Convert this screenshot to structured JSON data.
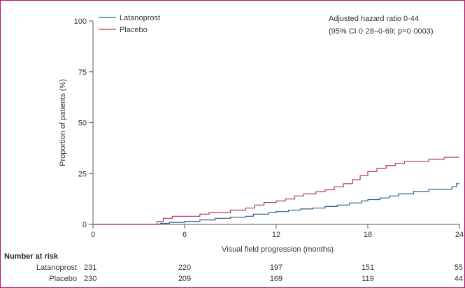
{
  "chart_data": {
    "type": "line",
    "step": true,
    "xlabel": "Visual field progression (months)",
    "ylabel": "Proportion of patients (%)",
    "xlim": [
      0,
      24
    ],
    "ylim": [
      0,
      100
    ],
    "x_ticks": [
      0,
      6,
      12,
      18,
      24
    ],
    "y_ticks": [
      0,
      25,
      50,
      75,
      100
    ],
    "grid": false,
    "legend_position": "top-left",
    "series": [
      {
        "name": "Latanoprost",
        "color": "#2e5f86",
        "points": [
          [
            0,
            0
          ],
          [
            4.4,
            0
          ],
          [
            4.4,
            0.5
          ],
          [
            5.0,
            0.5
          ],
          [
            5.0,
            1.0
          ],
          [
            6.0,
            1.0
          ],
          [
            6.0,
            1.5
          ],
          [
            7.0,
            1.5
          ],
          [
            7.0,
            2.2
          ],
          [
            8.0,
            2.2
          ],
          [
            8.0,
            3.0
          ],
          [
            9.0,
            3.0
          ],
          [
            9.0,
            3.5
          ],
          [
            10.0,
            3.5
          ],
          [
            10.0,
            4.0
          ],
          [
            10.5,
            4.0
          ],
          [
            10.5,
            5.0
          ],
          [
            11.5,
            5.0
          ],
          [
            11.5,
            5.8
          ],
          [
            12.0,
            5.8
          ],
          [
            12.0,
            6.3
          ],
          [
            12.8,
            6.3
          ],
          [
            12.8,
            7.0
          ],
          [
            13.6,
            7.0
          ],
          [
            13.6,
            7.6
          ],
          [
            14.4,
            7.6
          ],
          [
            14.4,
            8.0
          ],
          [
            15.2,
            8.0
          ],
          [
            15.2,
            8.8
          ],
          [
            16.0,
            8.8
          ],
          [
            16.0,
            9.5
          ],
          [
            16.8,
            9.5
          ],
          [
            16.8,
            10.5
          ],
          [
            17.6,
            10.5
          ],
          [
            17.6,
            11.5
          ],
          [
            18.0,
            11.5
          ],
          [
            18.0,
            12.2
          ],
          [
            18.8,
            12.2
          ],
          [
            18.8,
            13.0
          ],
          [
            19.4,
            13.0
          ],
          [
            19.4,
            14.0
          ],
          [
            20.0,
            14.0
          ],
          [
            20.0,
            15.0
          ],
          [
            21.0,
            15.0
          ],
          [
            21.0,
            16.2
          ],
          [
            22.0,
            16.2
          ],
          [
            22.0,
            17.2
          ],
          [
            23.5,
            17.2
          ],
          [
            23.5,
            18.5
          ],
          [
            23.8,
            18.5
          ],
          [
            23.8,
            20.0
          ],
          [
            24.0,
            20.0
          ]
        ]
      },
      {
        "name": "Placebo",
        "color": "#b0385a",
        "points": [
          [
            0,
            0
          ],
          [
            4.2,
            0
          ],
          [
            4.2,
            1.5
          ],
          [
            4.6,
            1.5
          ],
          [
            4.6,
            3.0
          ],
          [
            5.2,
            3.0
          ],
          [
            5.2,
            4.0
          ],
          [
            7.0,
            4.0
          ],
          [
            7.0,
            5.0
          ],
          [
            7.6,
            5.0
          ],
          [
            7.6,
            5.8
          ],
          [
            9.0,
            5.8
          ],
          [
            9.0,
            7.0
          ],
          [
            10.0,
            7.0
          ],
          [
            10.0,
            8.0
          ],
          [
            10.6,
            8.0
          ],
          [
            10.6,
            9.5
          ],
          [
            11.2,
            9.5
          ],
          [
            11.2,
            10.8
          ],
          [
            12.0,
            10.8
          ],
          [
            12.0,
            11.5
          ],
          [
            12.6,
            11.5
          ],
          [
            12.6,
            12.5
          ],
          [
            13.2,
            12.5
          ],
          [
            13.2,
            14.0
          ],
          [
            13.8,
            14.0
          ],
          [
            13.8,
            15.0
          ],
          [
            14.6,
            15.0
          ],
          [
            14.6,
            16.0
          ],
          [
            15.2,
            16.0
          ],
          [
            15.2,
            17.0
          ],
          [
            15.8,
            17.0
          ],
          [
            15.8,
            18.5
          ],
          [
            16.4,
            18.5
          ],
          [
            16.4,
            20.0
          ],
          [
            17.0,
            20.0
          ],
          [
            17.0,
            22.0
          ],
          [
            17.5,
            22.0
          ],
          [
            17.5,
            24.0
          ],
          [
            18.0,
            24.0
          ],
          [
            18.0,
            26.0
          ],
          [
            18.6,
            26.0
          ],
          [
            18.6,
            27.5
          ],
          [
            19.2,
            27.5
          ],
          [
            19.2,
            29.0
          ],
          [
            19.8,
            29.0
          ],
          [
            19.8,
            30.0
          ],
          [
            20.4,
            30.0
          ],
          [
            20.4,
            31.0
          ],
          [
            22.0,
            31.0
          ],
          [
            22.0,
            32.0
          ],
          [
            23.0,
            32.0
          ],
          [
            23.0,
            33.0
          ],
          [
            24.0,
            33.0
          ]
        ]
      }
    ],
    "annotation": {
      "line1": "Adjusted hazard ratio 0·44",
      "line2": "(95% CI 0·28–0·69; p=0·0003)"
    },
    "number_at_risk": {
      "title": "Number at risk",
      "times": [
        0,
        6,
        12,
        18,
        24
      ],
      "rows": [
        {
          "label": "Latanoprost",
          "values": [
            "231",
            "220",
            "197",
            "151",
            "55"
          ]
        },
        {
          "label": "Placebo",
          "values": [
            "230",
            "209",
            "169",
            "119",
            "44"
          ]
        }
      ]
    }
  }
}
